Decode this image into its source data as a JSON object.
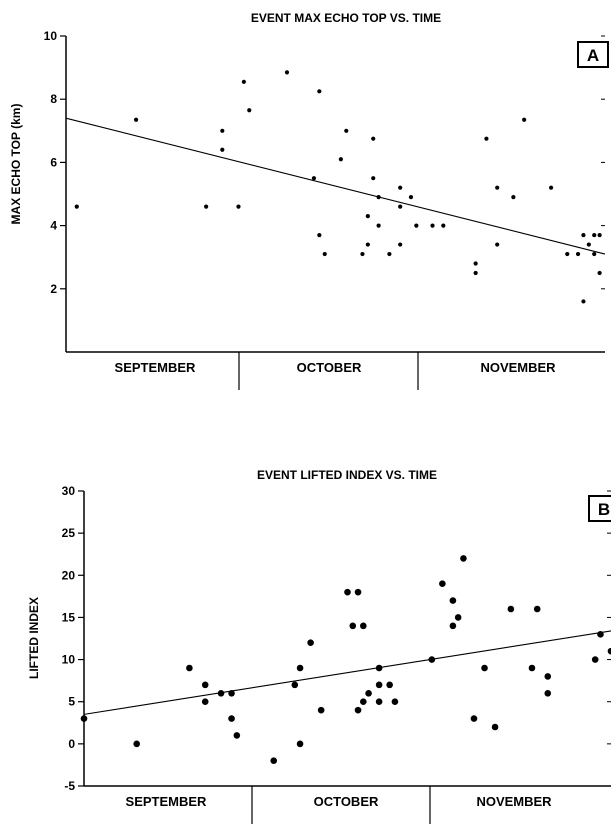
{
  "chart_data": [
    {
      "type": "scatter",
      "title": "EVENT MAX ECHO TOP VS. TIME",
      "ylabel": "MAX ECHO TOP (km)",
      "panel_label": "A",
      "ylim": [
        0,
        10
      ],
      "yticks": [
        2,
        4,
        6,
        8,
        10
      ],
      "xlim": [
        0,
        1
      ],
      "categories": [
        "SEPTEMBER",
        "OCTOBER",
        "NOVEMBER"
      ],
      "trend_line": {
        "x": [
          0.0,
          1.0
        ],
        "y": [
          7.4,
          3.1
        ]
      },
      "points": [
        [
          0.02,
          4.6
        ],
        [
          0.13,
          7.35
        ],
        [
          0.26,
          4.6
        ],
        [
          0.29,
          7.0
        ],
        [
          0.29,
          6.4
        ],
        [
          0.32,
          4.6
        ],
        [
          0.33,
          8.55
        ],
        [
          0.34,
          7.65
        ],
        [
          0.41,
          8.85
        ],
        [
          0.46,
          5.5
        ],
        [
          0.47,
          8.25
        ],
        [
          0.47,
          3.7
        ],
        [
          0.48,
          3.1
        ],
        [
          0.51,
          6.1
        ],
        [
          0.52,
          7.0
        ],
        [
          0.55,
          3.1
        ],
        [
          0.56,
          3.4
        ],
        [
          0.56,
          4.3
        ],
        [
          0.57,
          6.75
        ],
        [
          0.57,
          5.5
        ],
        [
          0.58,
          4.9
        ],
        [
          0.58,
          4.0
        ],
        [
          0.6,
          3.1
        ],
        [
          0.62,
          5.2
        ],
        [
          0.62,
          4.6
        ],
        [
          0.62,
          3.4
        ],
        [
          0.64,
          4.9
        ],
        [
          0.65,
          4.0
        ],
        [
          0.68,
          4.0
        ],
        [
          0.7,
          4.0
        ],
        [
          0.76,
          2.8
        ],
        [
          0.76,
          2.5
        ],
        [
          0.78,
          6.75
        ],
        [
          0.8,
          3.4
        ],
        [
          0.8,
          5.2
        ],
        [
          0.83,
          4.9
        ],
        [
          0.85,
          7.35
        ],
        [
          0.9,
          5.2
        ],
        [
          0.93,
          3.1
        ],
        [
          0.95,
          3.1
        ],
        [
          0.96,
          3.7
        ],
        [
          0.96,
          1.6
        ],
        [
          0.97,
          3.4
        ],
        [
          0.98,
          3.7
        ],
        [
          0.98,
          3.1
        ],
        [
          0.99,
          3.7
        ],
        [
          0.99,
          2.5
        ]
      ]
    },
    {
      "type": "scatter",
      "title": "EVENT LIFTED INDEX VS. TIME",
      "ylabel": "LIFTED INDEX",
      "panel_label": "B",
      "ylim": [
        -5,
        30
      ],
      "yticks": [
        -5,
        0,
        5,
        10,
        15,
        20,
        25,
        30
      ],
      "xlim": [
        0,
        1
      ],
      "categories": [
        "SEPTEMBER",
        "OCTOBER",
        "NOVEMBER"
      ],
      "trend_line": {
        "x": [
          0.0,
          1.0
        ],
        "y": [
          3.5,
          13.4
        ]
      },
      "points": [
        [
          0.0,
          3.0
        ],
        [
          0.1,
          0.0
        ],
        [
          0.2,
          9.0
        ],
        [
          0.23,
          7.0
        ],
        [
          0.23,
          5.0
        ],
        [
          0.26,
          6.0
        ],
        [
          0.28,
          6.0
        ],
        [
          0.28,
          3.0
        ],
        [
          0.29,
          1.0
        ],
        [
          0.36,
          -2.0
        ],
        [
          0.4,
          7.0
        ],
        [
          0.41,
          9.0
        ],
        [
          0.41,
          0.0
        ],
        [
          0.43,
          12.0
        ],
        [
          0.45,
          4.0
        ],
        [
          0.5,
          18.0
        ],
        [
          0.51,
          14.0
        ],
        [
          0.52,
          18.0
        ],
        [
          0.52,
          4.0
        ],
        [
          0.53,
          14.0
        ],
        [
          0.53,
          5.0
        ],
        [
          0.54,
          6.0
        ],
        [
          0.56,
          9.0
        ],
        [
          0.56,
          7.0
        ],
        [
          0.56,
          5.0
        ],
        [
          0.58,
          7.0
        ],
        [
          0.59,
          5.0
        ],
        [
          0.66,
          10.0
        ],
        [
          0.68,
          19.0
        ],
        [
          0.7,
          17.0
        ],
        [
          0.7,
          14.0
        ],
        [
          0.71,
          15.0
        ],
        [
          0.72,
          22.0
        ],
        [
          0.74,
          3.0
        ],
        [
          0.76,
          9.0
        ],
        [
          0.78,
          2.0
        ],
        [
          0.81,
          16.0
        ],
        [
          0.85,
          9.0
        ],
        [
          0.86,
          16.0
        ],
        [
          0.88,
          8.0
        ],
        [
          0.88,
          6.0
        ],
        [
          0.97,
          10.0
        ],
        [
          0.98,
          13.0
        ],
        [
          1.0,
          11.0
        ]
      ]
    }
  ]
}
